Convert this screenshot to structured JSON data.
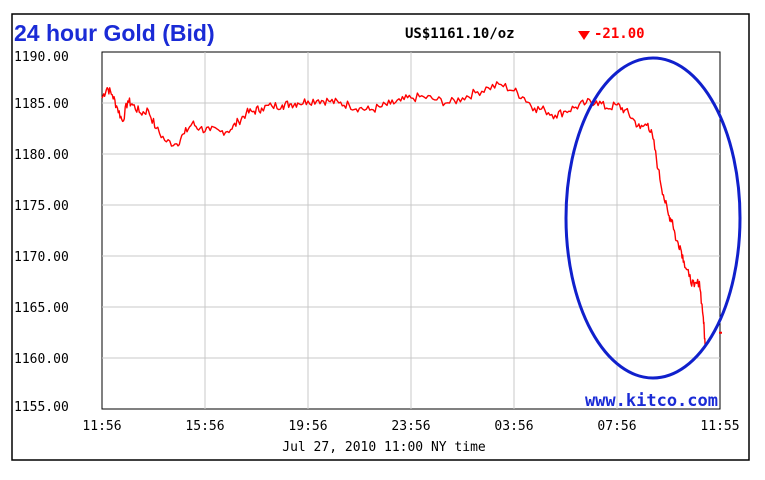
{
  "header": {
    "title": "24 hour Gold (Bid)",
    "price": "US$1161.10/oz",
    "change": "-21.00",
    "change_marker": "down-triangle-icon"
  },
  "watermark": "www.kitco.com",
  "footer": "Jul 27, 2010 11:00 NY time",
  "colors": {
    "title": "#1a2bd6",
    "line": "#ff0000",
    "change": "#ff0000",
    "ellipse": "#1020cc",
    "grid": "#c8c8c8",
    "frame": "#000000"
  },
  "chart_data": {
    "type": "line",
    "title": "24 hour Gold (Bid)",
    "xlabel": "Jul 27, 2010 11:00 NY time",
    "ylabel": "",
    "x_unit": "hours since 11:56",
    "x_ticks": [
      "11:56",
      "15:56",
      "19:56",
      "23:56",
      "03:56",
      "07:56",
      "11:55"
    ],
    "y_ticks": [
      "1190.00",
      "1185.00",
      "1180.00",
      "1175.00",
      "1170.00",
      "1165.00",
      "1160.00",
      "1155.00"
    ],
    "ylim": [
      1155,
      1190
    ],
    "xlim": [
      0,
      24
    ],
    "grid": true,
    "series": [
      {
        "name": "Gold Bid",
        "x": [
          0,
          0.2,
          0.4,
          0.6,
          0.8,
          1.0,
          1.2,
          1.5,
          1.8,
          2.1,
          2.5,
          2.9,
          3.2,
          3.5,
          3.8,
          4.2,
          4.6,
          5.0,
          5.3,
          5.6,
          5.9,
          6.2,
          6.6,
          7.0,
          7.3,
          7.6,
          8.0,
          8.4,
          8.8,
          9.2,
          9.6,
          10.0,
          10.4,
          10.8,
          11.2,
          11.6,
          12.0,
          12.5,
          13.0,
          13.5,
          14.0,
          14.5,
          15.0,
          15.5,
          16.0,
          16.4,
          16.8,
          17.2,
          17.6,
          18.0,
          18.4,
          18.8,
          19.2,
          19.6,
          20.0,
          20.3,
          20.6,
          20.9,
          21.2,
          21.4,
          21.6,
          21.8,
          22.0,
          22.15,
          22.3,
          22.45,
          22.6,
          22.8,
          23.0,
          23.2,
          23.35,
          23.42
        ],
        "y": [
          1185.5,
          1186.5,
          1185.8,
          1184.5,
          1183.2,
          1185.2,
          1184.8,
          1184.0,
          1184.3,
          1182.5,
          1181.2,
          1181.0,
          1182.0,
          1183.0,
          1182.5,
          1182.3,
          1182.2,
          1182.4,
          1183.2,
          1184.0,
          1184.2,
          1184.5,
          1184.7,
          1184.8,
          1184.9,
          1185.0,
          1185.2,
          1185.3,
          1185.2,
          1185.0,
          1184.8,
          1184.5,
          1184.3,
          1184.6,
          1184.9,
          1185.2,
          1185.5,
          1185.6,
          1185.3,
          1185.0,
          1185.5,
          1186.0,
          1186.5,
          1186.8,
          1186.2,
          1185.5,
          1184.5,
          1184.3,
          1183.8,
          1184.2,
          1184.6,
          1185.0,
          1185.2,
          1184.5,
          1184.8,
          1184.3,
          1183.5,
          1182.5,
          1183.0,
          1181.5,
          1178.5,
          1176.0,
          1174.0,
          1173.5,
          1171.5,
          1171.0,
          1169.5,
          1168.0,
          1167.0,
          1167.5,
          1164.0,
          1161.3
        ]
      }
    ],
    "annotations": [
      {
        "type": "ellipse",
        "description": "blue circle around drop"
      }
    ]
  }
}
